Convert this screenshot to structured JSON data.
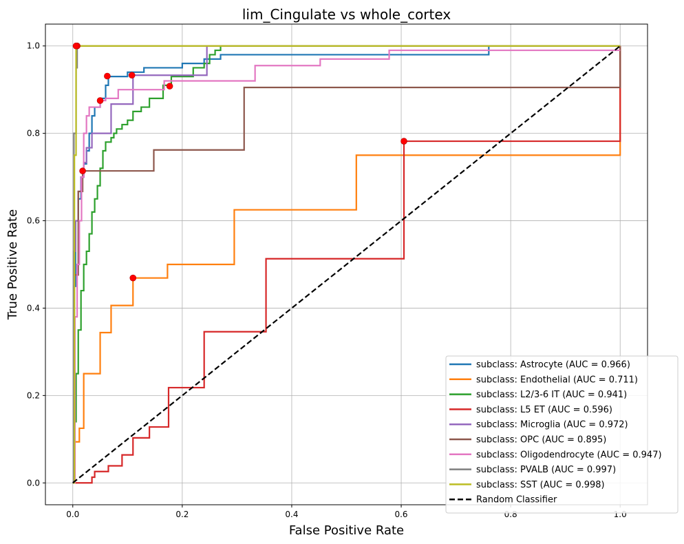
{
  "chart_data": {
    "type": "line",
    "title": "lim_Cingulate vs whole_cortex",
    "xlabel": "False Positive Rate",
    "ylabel": "True Positive Rate",
    "xlim": [
      -0.05,
      1.05
    ],
    "ylim": [
      -0.05,
      1.05
    ],
    "xticks": [
      0.0,
      0.2,
      0.4,
      0.6,
      0.8,
      1.0
    ],
    "yticks": [
      0.0,
      0.2,
      0.4,
      0.6,
      0.8,
      1.0
    ],
    "xtick_labels": [
      "0.0",
      "0.2",
      "0.4",
      "0.6",
      "0.8",
      "1.0"
    ],
    "ytick_labels": [
      "0.0",
      "0.2",
      "0.4",
      "0.6",
      "0.8",
      "1.0"
    ],
    "grid": true,
    "legend_position": "lower-right",
    "series": [
      {
        "name": "subclass: Astrocyte (AUC = 0.966)",
        "color": "#1f77b4",
        "x": [
          0,
          0.002,
          0.002,
          0.005,
          0.005,
          0.01,
          0.01,
          0.015,
          0.015,
          0.02,
          0.02,
          0.025,
          0.025,
          0.03,
          0.03,
          0.035,
          0.035,
          0.04,
          0.04,
          0.05,
          0.05,
          0.06,
          0.06,
          0.065,
          0.065,
          0.1,
          0.1,
          0.13,
          0.13,
          0.2,
          0.2,
          0.24,
          0.24,
          0.27,
          0.27,
          0.39,
          0.39,
          0.76,
          0.76,
          1.0
        ],
        "y": [
          0,
          0,
          0.45,
          0.45,
          0.6,
          0.6,
          0.65,
          0.65,
          0.7,
          0.7,
          0.73,
          0.73,
          0.76,
          0.76,
          0.8,
          0.8,
          0.84,
          0.84,
          0.86,
          0.86,
          0.88,
          0.88,
          0.91,
          0.91,
          0.93,
          0.93,
          0.94,
          0.94,
          0.95,
          0.95,
          0.96,
          0.96,
          0.97,
          0.97,
          0.98,
          0.98,
          0.98,
          0.98,
          1.0,
          1.0
        ],
        "marker": {
          "x": 0.063,
          "y": 0.931
        }
      },
      {
        "name": "subclass: Endothelial (AUC = 0.711)",
        "color": "#ff7f0e",
        "x": [
          0,
          0.004,
          0.004,
          0.012,
          0.012,
          0.02,
          0.02,
          0.05,
          0.05,
          0.07,
          0.07,
          0.11,
          0.11,
          0.173,
          0.173,
          0.295,
          0.295,
          0.518,
          0.518,
          1.0,
          1.0
        ],
        "y": [
          0,
          0,
          0.094,
          0.094,
          0.125,
          0.125,
          0.25,
          0.25,
          0.344,
          0.344,
          0.406,
          0.406,
          0.469,
          0.469,
          0.5,
          0.5,
          0.625,
          0.625,
          0.75,
          0.75,
          1.0
        ],
        "marker": {
          "x": 0.11,
          "y": 0.469
        }
      },
      {
        "name": "subclass: L2/3-6 IT (AUC = 0.941)",
        "color": "#2ca02c",
        "x": [
          0,
          0.003,
          0.003,
          0.006,
          0.006,
          0.01,
          0.01,
          0.015,
          0.015,
          0.02,
          0.02,
          0.025,
          0.025,
          0.03,
          0.03,
          0.035,
          0.035,
          0.04,
          0.04,
          0.045,
          0.045,
          0.05,
          0.05,
          0.055,
          0.055,
          0.06,
          0.06,
          0.07,
          0.07,
          0.075,
          0.075,
          0.08,
          0.08,
          0.09,
          0.09,
          0.1,
          0.1,
          0.11,
          0.11,
          0.125,
          0.125,
          0.14,
          0.14,
          0.165,
          0.165,
          0.18,
          0.18,
          0.22,
          0.22,
          0.24,
          0.24,
          0.25,
          0.25,
          0.26,
          0.26,
          0.27,
          0.27,
          0.3,
          0.3,
          1.0
        ],
        "y": [
          0,
          0,
          0.14,
          0.14,
          0.25,
          0.25,
          0.35,
          0.35,
          0.44,
          0.44,
          0.5,
          0.5,
          0.53,
          0.53,
          0.57,
          0.57,
          0.62,
          0.62,
          0.65,
          0.65,
          0.68,
          0.68,
          0.72,
          0.72,
          0.76,
          0.76,
          0.78,
          0.78,
          0.79,
          0.79,
          0.8,
          0.8,
          0.81,
          0.81,
          0.82,
          0.82,
          0.83,
          0.83,
          0.85,
          0.85,
          0.86,
          0.86,
          0.88,
          0.88,
          0.91,
          0.91,
          0.93,
          0.93,
          0.95,
          0.95,
          0.96,
          0.96,
          0.98,
          0.98,
          0.99,
          0.99,
          1.0,
          1.0,
          1.0,
          1.0
        ],
        "marker": {
          "x": 0.177,
          "y": 0.908
        }
      },
      {
        "name": "subclass: L5 ET (AUC = 0.596)",
        "color": "#d62728",
        "x": [
          0,
          0.035,
          0.035,
          0.04,
          0.04,
          0.065,
          0.065,
          0.09,
          0.09,
          0.11,
          0.11,
          0.14,
          0.14,
          0.175,
          0.175,
          0.24,
          0.24,
          0.353,
          0.353,
          0.605,
          0.605,
          1.0,
          1.0
        ],
        "y": [
          0,
          0,
          0.013,
          0.013,
          0.026,
          0.026,
          0.039,
          0.039,
          0.064,
          0.064,
          0.103,
          0.103,
          0.128,
          0.128,
          0.218,
          0.218,
          0.346,
          0.346,
          0.513,
          0.513,
          0.782,
          0.782,
          1.0
        ],
        "marker": {
          "x": 0.605,
          "y": 0.782
        }
      },
      {
        "name": "subclass: Microglia (AUC = 0.972)",
        "color": "#9467bd",
        "x": [
          0,
          0.002,
          0.002,
          0.005,
          0.005,
          0.01,
          0.01,
          0.015,
          0.015,
          0.02,
          0.02,
          0.025,
          0.025,
          0.035,
          0.035,
          0.05,
          0.05,
          0.07,
          0.07,
          0.11,
          0.11,
          0.245,
          0.245,
          1.0
        ],
        "y": [
          0,
          0,
          0.53,
          0.53,
          0.6,
          0.6,
          0.667,
          0.667,
          0.7,
          0.7,
          0.733,
          0.733,
          0.767,
          0.767,
          0.8,
          0.8,
          0.8,
          0.8,
          0.867,
          0.867,
          0.933,
          0.933,
          1.0,
          1.0
        ],
        "marker": {
          "x": 0.108,
          "y": 0.933
        }
      },
      {
        "name": "subclass: OPC (AUC = 0.895)",
        "color": "#8c564b",
        "x": [
          0,
          0.003,
          0.003,
          0.01,
          0.01,
          0.018,
          0.018,
          0.148,
          0.148,
          0.313,
          0.313,
          1.0,
          1.0
        ],
        "y": [
          0,
          0,
          0.476,
          0.476,
          0.667,
          0.667,
          0.714,
          0.714,
          0.762,
          0.762,
          0.905,
          0.905,
          1.0
        ],
        "marker": {
          "x": 0.018,
          "y": 0.714
        }
      },
      {
        "name": "subclass: Oligodendrocyte (AUC = 0.947)",
        "color": "#e377c2",
        "x": [
          0,
          0.004,
          0.004,
          0.008,
          0.008,
          0.012,
          0.012,
          0.016,
          0.016,
          0.02,
          0.02,
          0.025,
          0.025,
          0.03,
          0.03,
          0.05,
          0.05,
          0.06,
          0.06,
          0.083,
          0.083,
          0.167,
          0.167,
          0.333,
          0.333,
          0.452,
          0.452,
          0.578,
          0.578,
          0.718,
          0.718,
          1.0
        ],
        "y": [
          0,
          0,
          0.38,
          0.38,
          0.5,
          0.5,
          0.6,
          0.6,
          0.7,
          0.7,
          0.8,
          0.8,
          0.84,
          0.84,
          0.86,
          0.86,
          0.875,
          0.875,
          0.88,
          0.88,
          0.9,
          0.9,
          0.92,
          0.92,
          0.955,
          0.955,
          0.97,
          0.97,
          0.99,
          0.99,
          0.99,
          0.99
        ],
        "marker": {
          "x": 0.05,
          "y": 0.875
        }
      },
      {
        "name": "subclass: PVALB (AUC = 0.997)",
        "color": "#7f7f7f",
        "x": [
          0,
          0.002,
          0.002,
          0.006,
          0.006,
          0.008,
          0.008,
          1.0
        ],
        "y": [
          0,
          0,
          0.8,
          0.8,
          0.95,
          0.95,
          1.0,
          1.0
        ],
        "marker": {
          "x": 0.008,
          "y": 1.0
        }
      },
      {
        "name": "subclass: SST (AUC = 0.998)",
        "color": "#bcbd22",
        "x": [
          0,
          0.003,
          0.003,
          0.006,
          0.006,
          1.0
        ],
        "y": [
          0,
          0,
          0.75,
          0.75,
          1.0,
          1.0
        ],
        "marker": {
          "x": 0.006,
          "y": 1.0
        }
      },
      {
        "name": "Random Classifier",
        "color": "#000000",
        "dashed": true,
        "x": [
          0,
          1
        ],
        "y": [
          0,
          1
        ]
      }
    ]
  }
}
